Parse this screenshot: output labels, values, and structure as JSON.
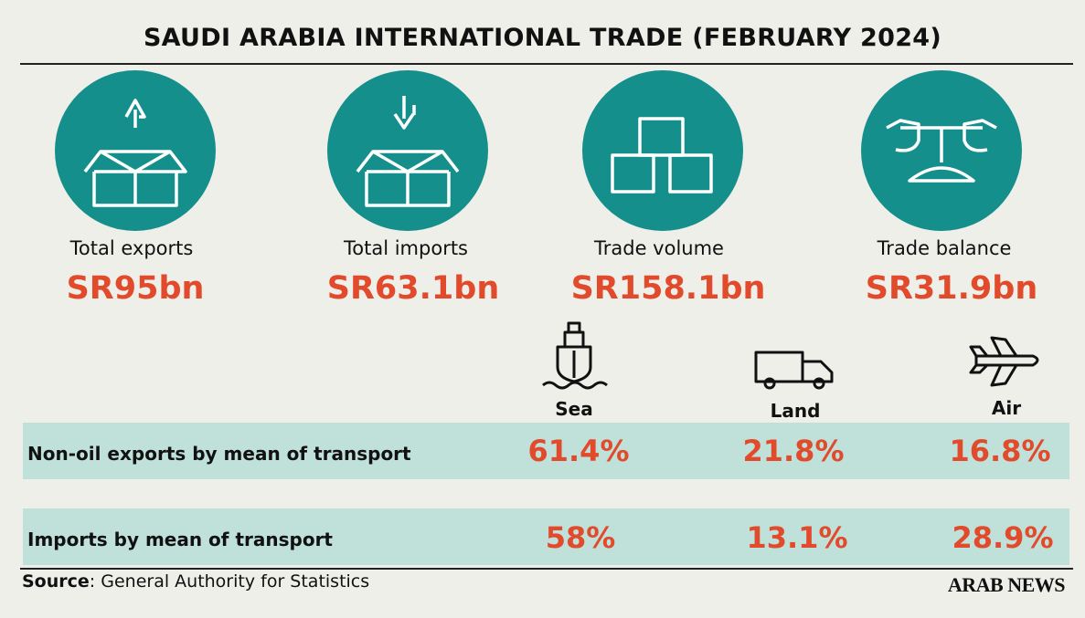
{
  "title": "SAUDI ARABIA INTERNATIONAL TRADE (FEBRUARY 2024)",
  "cards": [
    {
      "label": "Total exports",
      "value": "SR95bn"
    },
    {
      "label": "Total imports",
      "value": "SR63.1bn"
    },
    {
      "label": "Trade volume",
      "value": "SR158.1bn"
    },
    {
      "label": "Trade balance",
      "value": "SR31.9bn"
    }
  ],
  "modes": [
    "Sea",
    "Land",
    "Air"
  ],
  "rows": [
    {
      "label": "Non-oil exports by mean of transport",
      "values": [
        "61.4%",
        "21.8%",
        "16.8%"
      ]
    },
    {
      "label": "Imports by mean of transport",
      "values": [
        "58%",
        "13.1%",
        "28.9%"
      ]
    }
  ],
  "source": {
    "label": "Source",
    "text": ": General Authority for Statistics"
  },
  "brand": "ARAB NEWS"
}
